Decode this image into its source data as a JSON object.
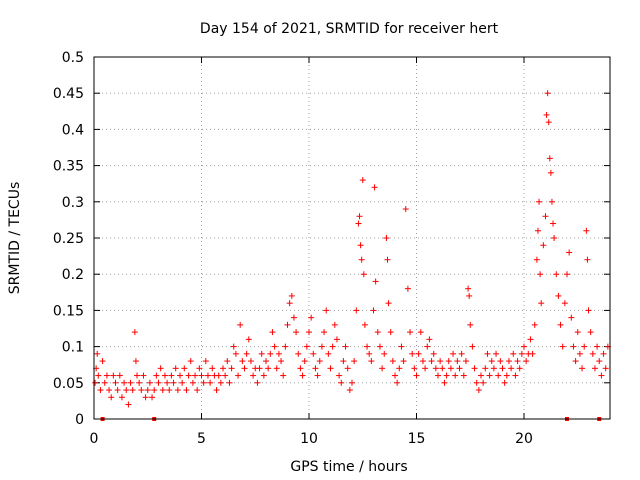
{
  "chart_data": {
    "type": "scatter",
    "title": "Day 154 of 2021, SRMTID for receiver hert",
    "xlabel": "GPS time / hours",
    "ylabel": "SRMTID / TECUs",
    "xlim": [
      0,
      24
    ],
    "ylim": [
      0,
      0.5
    ],
    "x_ticks": [
      0,
      5,
      10,
      15,
      20
    ],
    "x_tick_labels": [
      "0",
      "5",
      "10",
      "15",
      "20"
    ],
    "y_ticks": [
      0,
      0.05,
      0.1,
      0.15,
      0.2,
      0.25,
      0.3,
      0.35,
      0.4,
      0.45,
      0.5
    ],
    "y_tick_labels": [
      "0",
      "0.05",
      "0.1",
      "0.15",
      "0.2",
      "0.25",
      "0.3",
      "0.35",
      "0.4",
      "0.45",
      "0.5"
    ],
    "grid": true,
    "marker": "+",
    "color": "#ff0000",
    "series": [
      {
        "name": "SRMTID",
        "points": [
          [
            0.05,
            0.05
          ],
          [
            0.1,
            0.07
          ],
          [
            0.15,
            0.09
          ],
          [
            0.2,
            0.06
          ],
          [
            0.3,
            0.04
          ],
          [
            0.4,
            0.08
          ],
          [
            0.5,
            0.05
          ],
          [
            0.6,
            0.06
          ],
          [
            0.7,
            0.04
          ],
          [
            0.8,
            0.03
          ],
          [
            0.9,
            0.06
          ],
          [
            1.0,
            0.05
          ],
          [
            1.1,
            0.04
          ],
          [
            1.2,
            0.06
          ],
          [
            1.3,
            0.03
          ],
          [
            1.4,
            0.05
          ],
          [
            1.5,
            0.04
          ],
          [
            1.6,
            0.02
          ],
          [
            1.7,
            0.05
          ],
          [
            1.8,
            0.04
          ],
          [
            1.9,
            0.12
          ],
          [
            1.95,
            0.08
          ],
          [
            2.0,
            0.06
          ],
          [
            2.1,
            0.05
          ],
          [
            2.2,
            0.04
          ],
          [
            2.3,
            0.06
          ],
          [
            2.4,
            0.03
          ],
          [
            2.5,
            0.04
          ],
          [
            2.6,
            0.05
          ],
          [
            2.7,
            0.03
          ],
          [
            2.8,
            0.04
          ],
          [
            2.9,
            0.06
          ],
          [
            3.0,
            0.05
          ],
          [
            3.1,
            0.07
          ],
          [
            3.2,
            0.04
          ],
          [
            3.3,
            0.06
          ],
          [
            3.4,
            0.05
          ],
          [
            3.5,
            0.04
          ],
          [
            3.6,
            0.06
          ],
          [
            3.7,
            0.05
          ],
          [
            3.8,
            0.07
          ],
          [
            3.9,
            0.04
          ],
          [
            4.0,
            0.06
          ],
          [
            4.1,
            0.05
          ],
          [
            4.2,
            0.07
          ],
          [
            4.3,
            0.04
          ],
          [
            4.4,
            0.06
          ],
          [
            4.5,
            0.08
          ],
          [
            4.6,
            0.05
          ],
          [
            4.7,
            0.06
          ],
          [
            4.8,
            0.04
          ],
          [
            4.9,
            0.07
          ],
          [
            5.0,
            0.06
          ],
          [
            5.1,
            0.05
          ],
          [
            5.2,
            0.08
          ],
          [
            5.3,
            0.06
          ],
          [
            5.4,
            0.05
          ],
          [
            5.5,
            0.07
          ],
          [
            5.6,
            0.06
          ],
          [
            5.7,
            0.04
          ],
          [
            5.8,
            0.06
          ],
          [
            5.9,
            0.05
          ],
          [
            6.0,
            0.07
          ],
          [
            6.1,
            0.06
          ],
          [
            6.2,
            0.08
          ],
          [
            6.3,
            0.05
          ],
          [
            6.4,
            0.07
          ],
          [
            6.5,
            0.1
          ],
          [
            6.6,
            0.09
          ],
          [
            6.7,
            0.06
          ],
          [
            6.8,
            0.13
          ],
          [
            6.9,
            0.08
          ],
          [
            7.0,
            0.07
          ],
          [
            7.1,
            0.09
          ],
          [
            7.2,
            0.11
          ],
          [
            7.3,
            0.08
          ],
          [
            7.4,
            0.06
          ],
          [
            7.5,
            0.07
          ],
          [
            7.6,
            0.05
          ],
          [
            7.7,
            0.07
          ],
          [
            7.8,
            0.09
          ],
          [
            7.9,
            0.06
          ],
          [
            8.0,
            0.08
          ],
          [
            8.1,
            0.07
          ],
          [
            8.2,
            0.09
          ],
          [
            8.3,
            0.12
          ],
          [
            8.4,
            0.1
          ],
          [
            8.5,
            0.07
          ],
          [
            8.6,
            0.09
          ],
          [
            8.7,
            0.08
          ],
          [
            8.8,
            0.06
          ],
          [
            8.9,
            0.1
          ],
          [
            9.0,
            0.13
          ],
          [
            9.1,
            0.16
          ],
          [
            9.2,
            0.17
          ],
          [
            9.3,
            0.14
          ],
          [
            9.4,
            0.12
          ],
          [
            9.5,
            0.09
          ],
          [
            9.6,
            0.07
          ],
          [
            9.7,
            0.06
          ],
          [
            9.8,
            0.08
          ],
          [
            9.9,
            0.1
          ],
          [
            10.0,
            0.12
          ],
          [
            10.1,
            0.14
          ],
          [
            10.2,
            0.09
          ],
          [
            10.3,
            0.07
          ],
          [
            10.4,
            0.06
          ],
          [
            10.5,
            0.08
          ],
          [
            10.6,
            0.1
          ],
          [
            10.7,
            0.12
          ],
          [
            10.8,
            0.15
          ],
          [
            10.9,
            0.09
          ],
          [
            11.0,
            0.07
          ],
          [
            11.1,
            0.1
          ],
          [
            11.2,
            0.13
          ],
          [
            11.3,
            0.11
          ],
          [
            11.4,
            0.06
          ],
          [
            11.5,
            0.05
          ],
          [
            11.6,
            0.08
          ],
          [
            11.7,
            0.1
          ],
          [
            11.8,
            0.07
          ],
          [
            11.9,
            0.04
          ],
          [
            12.0,
            0.05
          ],
          [
            12.1,
            0.08
          ],
          [
            12.2,
            0.15
          ],
          [
            12.3,
            0.27
          ],
          [
            12.35,
            0.28
          ],
          [
            12.4,
            0.24
          ],
          [
            12.45,
            0.22
          ],
          [
            12.5,
            0.33
          ],
          [
            12.55,
            0.2
          ],
          [
            12.6,
            0.13
          ],
          [
            12.7,
            0.1
          ],
          [
            12.8,
            0.09
          ],
          [
            12.9,
            0.08
          ],
          [
            13.0,
            0.15
          ],
          [
            13.05,
            0.32
          ],
          [
            13.1,
            0.19
          ],
          [
            13.2,
            0.12
          ],
          [
            13.3,
            0.1
          ],
          [
            13.4,
            0.07
          ],
          [
            13.5,
            0.09
          ],
          [
            13.6,
            0.25
          ],
          [
            13.65,
            0.22
          ],
          [
            13.7,
            0.16
          ],
          [
            13.8,
            0.12
          ],
          [
            13.9,
            0.08
          ],
          [
            14.0,
            0.06
          ],
          [
            14.1,
            0.05
          ],
          [
            14.2,
            0.07
          ],
          [
            14.3,
            0.1
          ],
          [
            14.4,
            0.08
          ],
          [
            14.5,
            0.29
          ],
          [
            14.6,
            0.18
          ],
          [
            14.7,
            0.12
          ],
          [
            14.8,
            0.09
          ],
          [
            14.9,
            0.07
          ],
          [
            15.0,
            0.06
          ],
          [
            15.1,
            0.09
          ],
          [
            15.2,
            0.12
          ],
          [
            15.3,
            0.08
          ],
          [
            15.4,
            0.07
          ],
          [
            15.5,
            0.1
          ],
          [
            15.6,
            0.11
          ],
          [
            15.7,
            0.08
          ],
          [
            15.8,
            0.09
          ],
          [
            15.9,
            0.07
          ],
          [
            16.0,
            0.06
          ],
          [
            16.1,
            0.08
          ],
          [
            16.2,
            0.07
          ],
          [
            16.3,
            0.05
          ],
          [
            16.4,
            0.06
          ],
          [
            16.5,
            0.08
          ],
          [
            16.6,
            0.07
          ],
          [
            16.7,
            0.09
          ],
          [
            16.8,
            0.06
          ],
          [
            16.9,
            0.08
          ],
          [
            17.0,
            0.07
          ],
          [
            17.1,
            0.09
          ],
          [
            17.2,
            0.06
          ],
          [
            17.3,
            0.08
          ],
          [
            17.4,
            0.18
          ],
          [
            17.45,
            0.17
          ],
          [
            17.5,
            0.13
          ],
          [
            17.6,
            0.1
          ],
          [
            17.7,
            0.07
          ],
          [
            17.8,
            0.05
          ],
          [
            17.9,
            0.04
          ],
          [
            18.0,
            0.06
          ],
          [
            18.1,
            0.05
          ],
          [
            18.2,
            0.07
          ],
          [
            18.3,
            0.09
          ],
          [
            18.4,
            0.06
          ],
          [
            18.5,
            0.08
          ],
          [
            18.6,
            0.07
          ],
          [
            18.7,
            0.09
          ],
          [
            18.8,
            0.06
          ],
          [
            18.9,
            0.08
          ],
          [
            19.0,
            0.07
          ],
          [
            19.1,
            0.05
          ],
          [
            19.2,
            0.06
          ],
          [
            19.3,
            0.08
          ],
          [
            19.4,
            0.07
          ],
          [
            19.5,
            0.09
          ],
          [
            19.6,
            0.06
          ],
          [
            19.7,
            0.08
          ],
          [
            19.8,
            0.07
          ],
          [
            19.9,
            0.09
          ],
          [
            20.0,
            0.1
          ],
          [
            20.1,
            0.08
          ],
          [
            20.2,
            0.09
          ],
          [
            20.3,
            0.11
          ],
          [
            20.4,
            0.09
          ],
          [
            20.5,
            0.13
          ],
          [
            20.6,
            0.22
          ],
          [
            20.65,
            0.26
          ],
          [
            20.7,
            0.3
          ],
          [
            20.75,
            0.2
          ],
          [
            20.8,
            0.16
          ],
          [
            20.9,
            0.24
          ],
          [
            21.0,
            0.28
          ],
          [
            21.05,
            0.42
          ],
          [
            21.1,
            0.45
          ],
          [
            21.15,
            0.41
          ],
          [
            21.2,
            0.36
          ],
          [
            21.25,
            0.34
          ],
          [
            21.3,
            0.3
          ],
          [
            21.35,
            0.27
          ],
          [
            21.4,
            0.25
          ],
          [
            21.5,
            0.2
          ],
          [
            21.6,
            0.17
          ],
          [
            21.7,
            0.13
          ],
          [
            21.8,
            0.1
          ],
          [
            21.9,
            0.16
          ],
          [
            22.0,
            0.2
          ],
          [
            22.1,
            0.23
          ],
          [
            22.2,
            0.14
          ],
          [
            22.3,
            0.1
          ],
          [
            22.4,
            0.08
          ],
          [
            22.5,
            0.12
          ],
          [
            22.6,
            0.09
          ],
          [
            22.7,
            0.07
          ],
          [
            22.8,
            0.1
          ],
          [
            22.9,
            0.26
          ],
          [
            22.95,
            0.22
          ],
          [
            23.0,
            0.15
          ],
          [
            23.1,
            0.12
          ],
          [
            23.2,
            0.09
          ],
          [
            23.3,
            0.07
          ],
          [
            23.4,
            0.1
          ],
          [
            23.5,
            0.08
          ],
          [
            23.6,
            0.06
          ],
          [
            23.7,
            0.09
          ],
          [
            23.8,
            0.07
          ],
          [
            23.9,
            0.1
          ]
        ]
      }
    ],
    "axis_markers": [
      0.4,
      2.8,
      22.0,
      23.5
    ]
  }
}
